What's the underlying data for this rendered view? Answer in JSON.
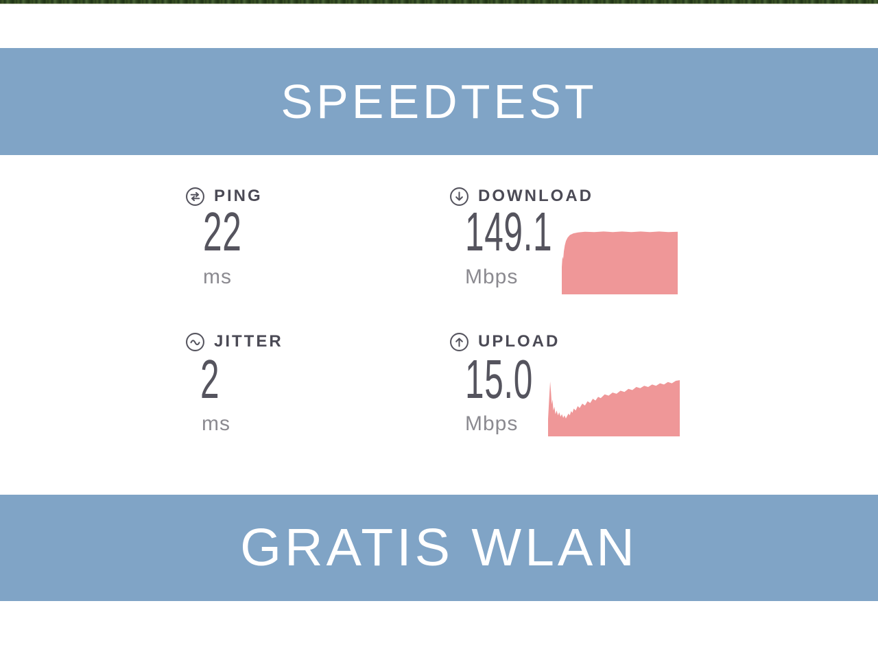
{
  "banner_top": {
    "title": "SPEEDTEST"
  },
  "banner_bottom": {
    "title": "GRATIS WLAN"
  },
  "metrics": {
    "ping": {
      "label": "PING",
      "value": "22",
      "unit": "ms"
    },
    "jitter": {
      "label": "JITTER",
      "value": "2",
      "unit": "ms"
    },
    "download": {
      "label": "DOWNLOAD",
      "value": "149.1",
      "unit": "Mbps"
    },
    "upload": {
      "label": "UPLOAD",
      "value": "15.0",
      "unit": "Mbps"
    }
  },
  "colors": {
    "banner_blue": "#80a4c6",
    "banner_text": "#ffffff",
    "graph_pink": "#ef9798",
    "label_gray": "#4b4a55",
    "value_gray": "#55545e",
    "unit_gray": "#8b8a90",
    "icon_gray": "#55545e",
    "top_strip_green": "#2e4420"
  },
  "icons": {
    "ping": "ping-arrows-icon",
    "jitter": "jitter-wave-icon",
    "download": "download-arrow-icon",
    "upload": "upload-arrow-icon"
  },
  "chart_data": [
    {
      "id": "download-sparkline",
      "type": "area",
      "unit": "Mbps",
      "result_value": 149.1,
      "shape": "fast ramp from zero then flat plateau",
      "color": "#ef9798",
      "points": [
        [
          0,
          100
        ],
        [
          0,
          58
        ],
        [
          0.6,
          42
        ],
        [
          1.2,
          46
        ],
        [
          1.8,
          34
        ],
        [
          2.6,
          25
        ],
        [
          3.6,
          18
        ],
        [
          5,
          13
        ],
        [
          7,
          9
        ],
        [
          10,
          6.5
        ],
        [
          14,
          5
        ],
        [
          20,
          4
        ],
        [
          28,
          4.5
        ],
        [
          36,
          3.5
        ],
        [
          44,
          4.5
        ],
        [
          52,
          3.5
        ],
        [
          60,
          4.5
        ],
        [
          68,
          3.5
        ],
        [
          76,
          4.5
        ],
        [
          84,
          3.5
        ],
        [
          92,
          4.5
        ],
        [
          100,
          4
        ],
        [
          100,
          100
        ]
      ]
    },
    {
      "id": "upload-sparkline",
      "type": "area",
      "unit": "Mbps",
      "result_value": 15.0,
      "shape": "initial narrow spike, dip to valley, gradual noisy climb to plateau",
      "color": "#ef9798",
      "points": [
        [
          0,
          100
        ],
        [
          0,
          72
        ],
        [
          0.8,
          40
        ],
        [
          1.6,
          11
        ],
        [
          2.2,
          28
        ],
        [
          2.8,
          48
        ],
        [
          3.4,
          40
        ],
        [
          4,
          58
        ],
        [
          4.8,
          52
        ],
        [
          5.6,
          64
        ],
        [
          6.5,
          58
        ],
        [
          7.5,
          66
        ],
        [
          8.5,
          61
        ],
        [
          9.5,
          68
        ],
        [
          10.5,
          64
        ],
        [
          11.5,
          70
        ],
        [
          12.5,
          66
        ],
        [
          13.5,
          71
        ],
        [
          14.5,
          67
        ],
        [
          15.5,
          63
        ],
        [
          16.5,
          66
        ],
        [
          17.5,
          59
        ],
        [
          18.5,
          62
        ],
        [
          19.5,
          55
        ],
        [
          21,
          58
        ],
        [
          22.5,
          51
        ],
        [
          24,
          54
        ],
        [
          26,
          47
        ],
        [
          28,
          50
        ],
        [
          30,
          43
        ],
        [
          32,
          46
        ],
        [
          34,
          39
        ],
        [
          36,
          42
        ],
        [
          38,
          36
        ],
        [
          40,
          38
        ],
        [
          43,
          32
        ],
        [
          46,
          34
        ],
        [
          49,
          29
        ],
        [
          52,
          31
        ],
        [
          55,
          26
        ],
        [
          58,
          28
        ],
        [
          61,
          23
        ],
        [
          64,
          25
        ],
        [
          67,
          20
        ],
        [
          70,
          22
        ],
        [
          73,
          18
        ],
        [
          76,
          20
        ],
        [
          79,
          16
        ],
        [
          82,
          18
        ],
        [
          85,
          14
        ],
        [
          88,
          16
        ],
        [
          91,
          12
        ],
        [
          94,
          14
        ],
        [
          97,
          10
        ],
        [
          100,
          9
        ],
        [
          100,
          100
        ]
      ]
    }
  ]
}
